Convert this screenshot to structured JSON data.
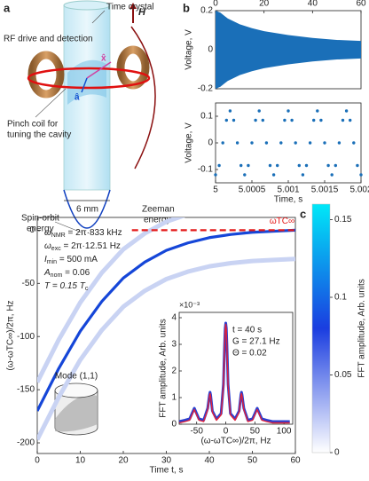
{
  "panel_labels": [
    "a",
    "b",
    "c"
  ],
  "diagram": {
    "time_crystal": "Time crystal",
    "rf": "RF drive and detection",
    "pinch": [
      "Pinch coil for",
      "tuning the cavity"
    ],
    "size": "6 mm",
    "spin_orbit": [
      "Spin-orbit",
      "energy"
    ],
    "zeeman": [
      "Zeeman",
      "energy"
    ],
    "field": "H",
    "a_hat": "â",
    "x_hat": "x̂"
  },
  "chart_data": [
    {
      "type": "area",
      "xlabel": "Time, s",
      "ylabel": "Voltage, V",
      "xaxis_top": true,
      "color": "#1a6fb8",
      "x": [
        0,
        2,
        5,
        10,
        15,
        20,
        30,
        40,
        50,
        60
      ],
      "values": [
        0.2,
        0.19,
        0.16,
        0.13,
        0.11,
        0.095,
        0.075,
        0.06,
        0.05,
        0.045
      ],
      "xlim": [
        0,
        60
      ],
      "xticks": [
        0,
        20,
        40,
        60
      ],
      "ylim": [
        -0.2,
        0.2
      ],
      "yticks": [
        -0.2,
        0,
        0.2
      ]
    },
    {
      "type": "scatter",
      "xlabel": "Time, s",
      "ylabel": "Voltage, V",
      "color": "#1a6fb8",
      "x": [
        5,
        5.00005,
        5.0001,
        5.00015,
        5.0002,
        5.00025,
        5.0003,
        5.00035,
        5.0004,
        5.00045,
        5.0005,
        5.00055,
        5.0006,
        5.00065,
        5.0007,
        5.00075,
        5.0008,
        5.00085,
        5.0009,
        5.00095,
        5.001,
        5.00105,
        5.0011,
        5.00115,
        5.0012,
        5.00125,
        5.0013,
        5.00135,
        5.0014,
        5.00145,
        5.0015,
        5.00155,
        5.0016,
        5.00165,
        5.0017,
        5.00175,
        5.0018,
        5.00185,
        5.0019,
        5.00195,
        5.002
      ],
      "values": [
        -0.12,
        -0.085,
        0,
        0.085,
        0.12,
        0.085,
        0,
        -0.085,
        -0.12,
        -0.085,
        0,
        0.085,
        0.12,
        0.085,
        0,
        -0.085,
        -0.12,
        -0.085,
        0,
        0.085,
        0.12,
        0.085,
        0,
        -0.085,
        -0.12,
        -0.085,
        0,
        0.085,
        0.12,
        0.085,
        0,
        -0.085,
        -0.12,
        -0.085,
        0,
        0.085,
        0.12,
        0.085,
        0,
        -0.085,
        -0.12
      ],
      "xlim": [
        5,
        5.002
      ],
      "xticks": [
        5,
        5.0005,
        5.001,
        5.0015,
        5.002
      ],
      "ylim": [
        -0.15,
        0.15
      ],
      "yticks": [
        -0.1,
        0,
        0.1
      ]
    },
    {
      "type": "line",
      "xlabel": "Time t, s",
      "ylabel": "(ω-ωTC∞)/2π, Hz",
      "x": [
        0,
        5,
        10,
        15,
        20,
        25,
        30,
        35,
        40,
        45,
        50,
        55,
        60
      ],
      "series": [
        {
          "color": "#c9d3f3",
          "values": [
            -143,
            -103,
            -68,
            -40,
            -18,
            -3,
            8,
            15,
            20,
            23,
            25,
            26,
            27
          ]
        },
        {
          "color": "#c9d3f3",
          "values": [
            -197,
            -157,
            -122,
            -94,
            -72,
            -57,
            -46,
            -39,
            -34,
            -31,
            -29,
            -28,
            -27
          ]
        },
        {
          "color": "#1546d8",
          "values": [
            -170,
            -130,
            -95,
            -67,
            -45,
            -30,
            -19,
            -12,
            -7,
            -4,
            -2,
            -1,
            0
          ]
        }
      ],
      "xlim": [
        0,
        60
      ],
      "xticks": [
        0,
        10,
        20,
        30,
        40,
        50,
        60
      ],
      "ylim": [
        -210,
        12
      ],
      "yticks": [
        -200,
        -150,
        -100,
        -50,
        0
      ],
      "reference_line": {
        "y": 0,
        "x_start": 22,
        "color": "#e41a1a",
        "label": "ωTC∞"
      },
      "annotations": [
        {
          "symbol": "ω",
          "sub": "NMR",
          "text": " = 2π·833 kHz"
        },
        {
          "symbol": "ω",
          "sub": "exc",
          "text": " = 2π·12.51 Hz"
        },
        {
          "symbol": "I",
          "sub": "min",
          "text": " = 500 mA"
        },
        {
          "symbol": "A",
          "sub": "nom",
          "text": " = 0.06"
        },
        {
          "symbol": "T = 0.15 T",
          "sub": "c"
        }
      ],
      "mode_label": "Mode (1,1)",
      "colorbar": {
        "label": "FFT amplitude, Arb. units",
        "lim": [
          0,
          0.16
        ],
        "ticks": [
          0,
          0.05,
          0.1,
          0.15
        ],
        "colors": [
          "#ffffff",
          "#1a3de0",
          "#00e8f8"
        ]
      }
    },
    {
      "type": "line",
      "xlabel": "(ω-ωTC∞)/2π, Hz",
      "ylabel": "FFT amplitude, Arb. units",
      "multiplier": "×10⁻³",
      "x": [
        -80,
        -70,
        -62,
        -56,
        -54,
        -52,
        -46,
        -38,
        -31,
        -28,
        -27,
        -26,
        -23,
        -16,
        -8,
        -4,
        -2,
        -1,
        0,
        1,
        2,
        4,
        8,
        16,
        23,
        26,
        27,
        28,
        31,
        38,
        46,
        52,
        54,
        56,
        62,
        70,
        80,
        90,
        100,
        110
      ],
      "series": [
        {
          "color": "#2a3fd0",
          "values": [
            0.1,
            0.15,
            0.2,
            0.5,
            0.6,
            0.5,
            0.2,
            0.15,
            0.6,
            1.1,
            1.2,
            1.1,
            0.5,
            0.2,
            0.4,
            1.5,
            3,
            3.6,
            3.8,
            3.6,
            3,
            1.5,
            0.4,
            0.2,
            0.5,
            1.1,
            1.2,
            1.1,
            0.6,
            0.15,
            0.2,
            0.5,
            0.6,
            0.5,
            0.2,
            0.15,
            0.1,
            0.1,
            0.1,
            0.1
          ]
        },
        {
          "color": "#e0203a",
          "values": [
            0.05,
            0.1,
            0.15,
            0.45,
            0.55,
            0.45,
            0.15,
            0.1,
            0.55,
            1.05,
            1.15,
            1.05,
            0.45,
            0.15,
            0.35,
            1.45,
            2.9,
            3.55,
            3.75,
            3.55,
            2.9,
            1.45,
            0.35,
            0.15,
            0.45,
            1.05,
            1.15,
            1.05,
            0.55,
            0.1,
            0.15,
            0.45,
            0.55,
            0.45,
            0.15,
            0.1,
            0.05,
            0.05,
            0.05,
            0.05
          ]
        }
      ],
      "xlim": [
        -80,
        115
      ],
      "xticks": [
        -50,
        0,
        50,
        100
      ],
      "ylim": [
        0,
        4.2
      ],
      "yticks": [
        0,
        1,
        2,
        3,
        4
      ],
      "annotations": [
        "t = 40 s",
        "G = 27.1 Hz",
        "Θ = 0.02"
      ]
    }
  ]
}
